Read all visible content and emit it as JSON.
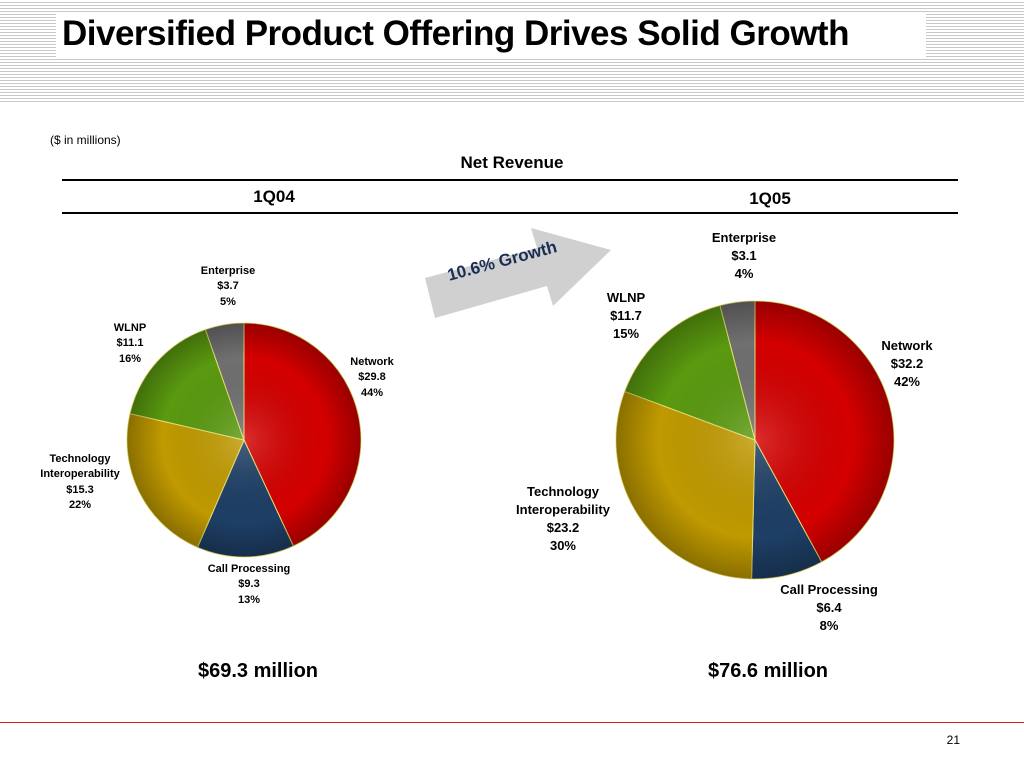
{
  "slide": {
    "title": "Diversified Product Offering Drives Solid Growth",
    "units_note": "($ in millions)",
    "page_number": "21",
    "growth_label": "10.6% Growth",
    "colors": {
      "accent_line": "#d02020",
      "growth_arrow": "#d0d0d0",
      "growth_text": "#1a2e55"
    }
  },
  "chart_data": [
    {
      "type": "pie",
      "title": "Net Revenue",
      "period": "1Q04",
      "total_label": "$69.3 million",
      "slices": [
        {
          "name": "Network",
          "value": 29.8,
          "value_label": "$29.8",
          "percent": "44%",
          "color": "#d40000"
        },
        {
          "name": "Call Processing",
          "value": 9.3,
          "value_label": "$9.3",
          "percent": "13%",
          "color": "#1e3f66"
        },
        {
          "name": "Technology Interoperability",
          "name_lines": [
            "Technology",
            "Interoperability"
          ],
          "value": 15.3,
          "value_label": "$15.3",
          "percent": "22%",
          "color": "#c09a00"
        },
        {
          "name": "WLNP",
          "value": 11.1,
          "value_label": "$11.1",
          "percent": "16%",
          "color": "#5a9a10"
        },
        {
          "name": "Enterprise",
          "value": 3.7,
          "value_label": "$3.7",
          "percent": "5%",
          "color": "#707070"
        }
      ]
    },
    {
      "type": "pie",
      "title": "Net Revenue",
      "period": "1Q05",
      "total_label": "$76.6 million",
      "slices": [
        {
          "name": "Network",
          "value": 32.2,
          "value_label": "$32.2",
          "percent": "42%",
          "color": "#d40000"
        },
        {
          "name": "Call Processing",
          "value": 6.4,
          "value_label": "$6.4",
          "percent": "8%",
          "color": "#1e3f66"
        },
        {
          "name": "Technology Interoperability",
          "name_lines": [
            "Technology",
            "Interoperability"
          ],
          "value": 23.2,
          "value_label": "$23.2",
          "percent": "30%",
          "color": "#c09a00"
        },
        {
          "name": "WLNP",
          "value": 11.7,
          "value_label": "$11.7",
          "percent": "15%",
          "color": "#5a9a10"
        },
        {
          "name": "Enterprise",
          "value": 3.1,
          "value_label": "$3.1",
          "percent": "4%",
          "color": "#707070"
        }
      ]
    }
  ]
}
